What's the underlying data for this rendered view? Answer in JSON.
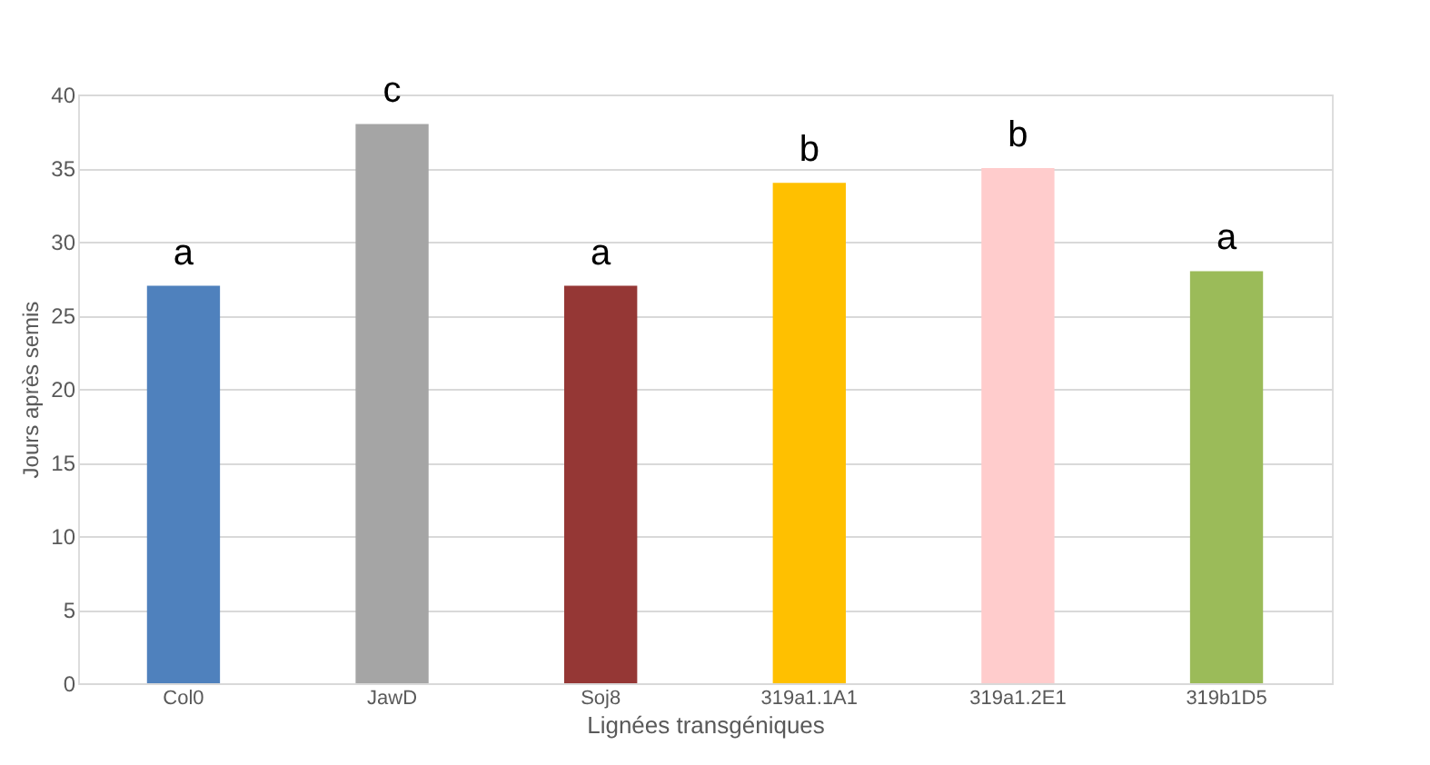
{
  "chart_data": {
    "type": "bar",
    "xlabel": "Lignées transgéniques",
    "ylabel": "Jours après semis",
    "categories": [
      "Col0",
      "JawD",
      "Soj8",
      "319a1.1A1",
      "319a1.2E1",
      "319b1D5"
    ],
    "values": [
      27,
      38,
      27,
      34,
      35,
      28
    ],
    "colors": [
      "#4f81bd",
      "#a5a5a5",
      "#953735",
      "#ffc000",
      "#ffcccc",
      "#9bbb59"
    ],
    "ylim": [
      0,
      40
    ],
    "yticks": [
      0,
      5,
      10,
      15,
      20,
      25,
      30,
      35,
      40
    ],
    "grid": "y",
    "annotations": [
      {
        "text": "a",
        "x": "Col0",
        "y": 27
      },
      {
        "text": "c",
        "x": "JawD",
        "y": 38
      },
      {
        "text": "a",
        "x": "Soj8",
        "y": 27
      },
      {
        "text": "b",
        "x": "319a1.1A1",
        "y": 34
      },
      {
        "text": "b",
        "x": "319a1.2E1",
        "y": 35
      },
      {
        "text": "a",
        "x": "319b1D5",
        "y": 28
      }
    ]
  }
}
